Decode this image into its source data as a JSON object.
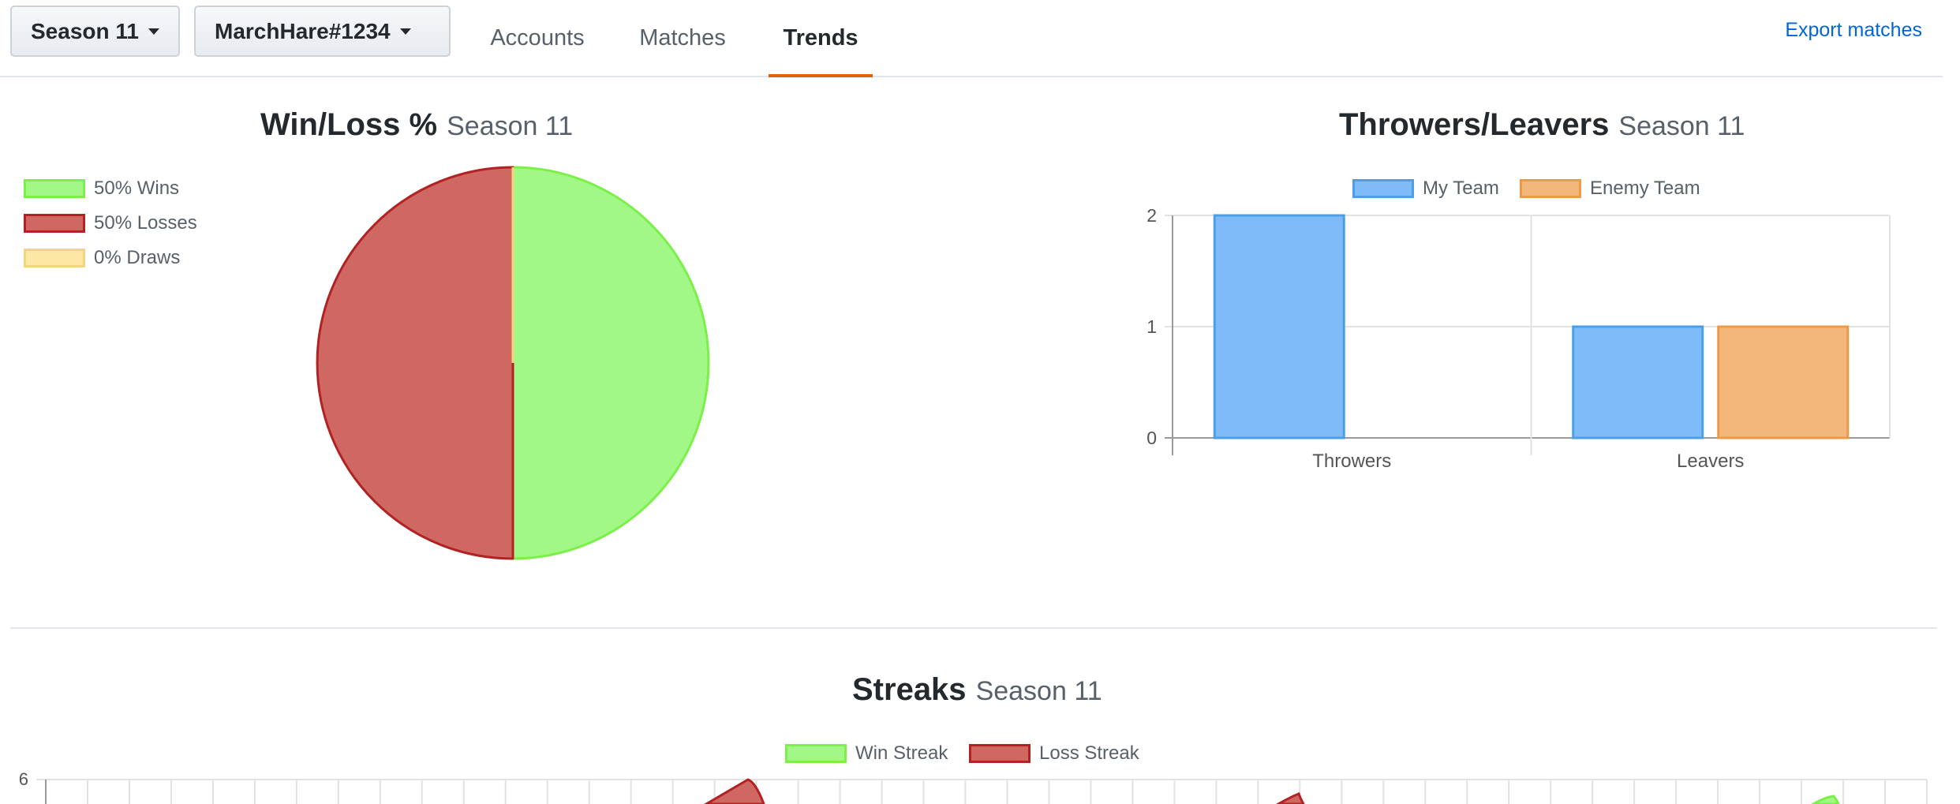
{
  "nav": {
    "season_label": "Season 11",
    "account_label": "MarchHare#1234",
    "tabs": [
      {
        "label": "Accounts"
      },
      {
        "label": "Matches"
      },
      {
        "label": "Trends"
      }
    ],
    "active_tab": "Trends",
    "export_label": "Export matches",
    "colors": {
      "active_underline": "#e36209",
      "link": "#0366d6"
    }
  },
  "winloss": {
    "title": "Win/Loss %",
    "subtitle": "Season 11",
    "legend": [
      {
        "label": "50% Wins",
        "fill": "#a1f886",
        "border": "#7cf04a"
      },
      {
        "label": "50% Losses",
        "fill": "#cf6762",
        "border": "#b22222"
      },
      {
        "label": "0% Draws",
        "fill": "#fce7a4",
        "border": "#f3d67c"
      }
    ]
  },
  "throwers": {
    "title": "Throwers/Leavers",
    "subtitle": "Season 11",
    "legend": [
      {
        "label": "My Team",
        "fill": "#80bbf9",
        "border": "#4a9fe6"
      },
      {
        "label": "Enemy Team",
        "fill": "#f3b77b",
        "border": "#ec9a47"
      }
    ]
  },
  "streaks": {
    "title": "Streaks",
    "subtitle": "Season 11",
    "legend": [
      {
        "label": "Win Streak",
        "fill": "#a1f886",
        "border": "#7cf04a"
      },
      {
        "label": "Loss Streak",
        "fill": "#cf6762",
        "border": "#b22222"
      }
    ],
    "y_tick_top": "6"
  },
  "chart_data": [
    {
      "type": "pie",
      "title": "Win/Loss %",
      "subtitle": "Season 11",
      "labels": [
        "50% Wins",
        "50% Losses",
        "0% Draws"
      ],
      "values": [
        50,
        50,
        0
      ],
      "colors": [
        "#a1f886",
        "#cf6762",
        "#fce7a4"
      ]
    },
    {
      "type": "bar",
      "title": "Throwers/Leavers",
      "subtitle": "Season 11",
      "categories": [
        "Throwers",
        "Leavers"
      ],
      "series": [
        {
          "name": "My Team",
          "values": [
            2,
            1
          ],
          "color": "#80bbf9"
        },
        {
          "name": "Enemy Team",
          "values": [
            0,
            1
          ],
          "color": "#f3b77b"
        }
      ],
      "yticks": [
        "0",
        "1",
        "2"
      ],
      "ylim": [
        0,
        2
      ],
      "grid": true,
      "legend": "top"
    },
    {
      "type": "area",
      "title": "Streaks",
      "subtitle": "Season 11",
      "series": [
        {
          "name": "Win Streak",
          "color": "#a1f886"
        },
        {
          "name": "Loss Streak",
          "color": "#cf6762"
        }
      ],
      "yticks_visible": [
        "6"
      ],
      "grid": true,
      "legend": "top"
    }
  ]
}
